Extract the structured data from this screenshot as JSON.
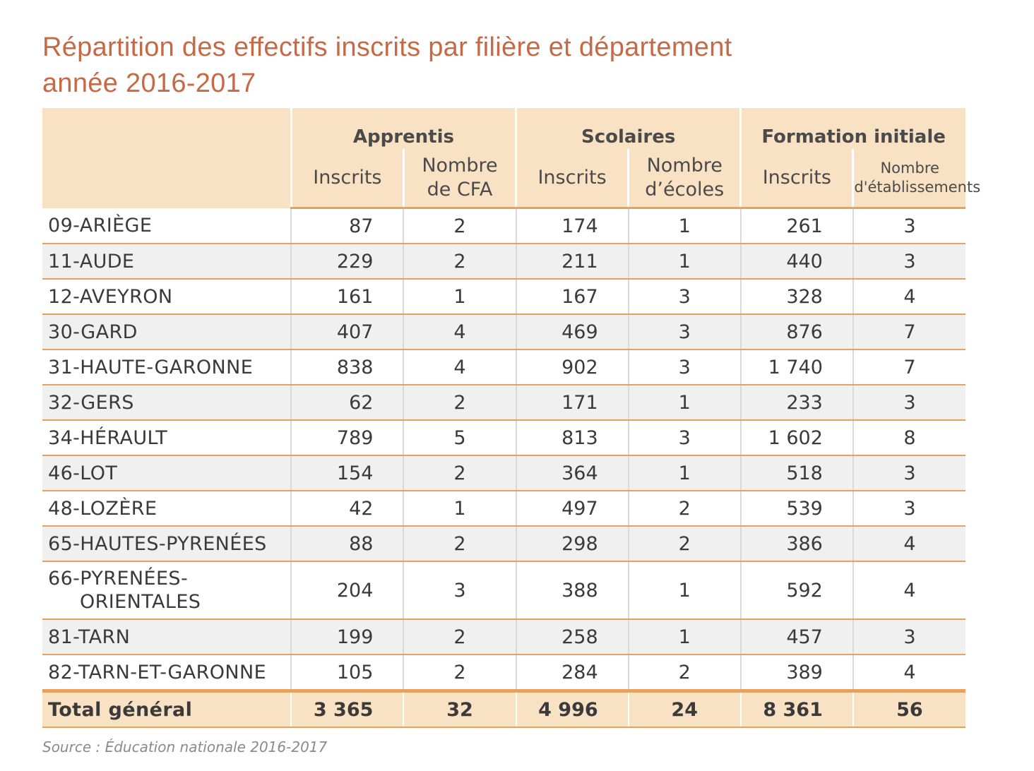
{
  "title": {
    "line1": "Répartition des effectifs inscrits par filière et département",
    "line2": "année 2016-2017"
  },
  "table": {
    "groups": [
      "Apprentis",
      "Scolaires",
      "Formation initiale"
    ],
    "subheaders": {
      "apprentis": {
        "inscrits": "Inscrits",
        "count_line1": "Nombre",
        "count_line2": "de CFA"
      },
      "scolaires": {
        "inscrits": "Inscrits",
        "count_line1": "Nombre",
        "count_line2": "d’écoles"
      },
      "formation": {
        "inscrits": "Inscrits",
        "count_line1": "Nombre",
        "count_line2": "d'établissements"
      }
    },
    "rows": [
      {
        "dept": "09-ARIÈGE",
        "dept_cont": "",
        "values": [
          "87",
          "2",
          "174",
          "1",
          "261",
          "3"
        ]
      },
      {
        "dept": "11-AUDE",
        "dept_cont": "",
        "values": [
          "229",
          "2",
          "211",
          "1",
          "440",
          "3"
        ]
      },
      {
        "dept": "12-AVEYRON",
        "dept_cont": "",
        "values": [
          "161",
          "1",
          "167",
          "3",
          "328",
          "4"
        ]
      },
      {
        "dept": "30-GARD",
        "dept_cont": "",
        "values": [
          "407",
          "4",
          "469",
          "3",
          "876",
          "7"
        ]
      },
      {
        "dept": "31-HAUTE-GARONNE",
        "dept_cont": "",
        "values": [
          "838",
          "4",
          "902",
          "3",
          "1 740",
          "7"
        ]
      },
      {
        "dept": "32-GERS",
        "dept_cont": "",
        "values": [
          "62",
          "2",
          "171",
          "1",
          "233",
          "3"
        ]
      },
      {
        "dept": "34-HÉRAULT",
        "dept_cont": "",
        "values": [
          "789",
          "5",
          "813",
          "3",
          "1 602",
          "8"
        ]
      },
      {
        "dept": "46-LOT",
        "dept_cont": "",
        "values": [
          "154",
          "2",
          "364",
          "1",
          "518",
          "3"
        ]
      },
      {
        "dept": "48-LOZÈRE",
        "dept_cont": "",
        "values": [
          "42",
          "1",
          "497",
          "2",
          "539",
          "3"
        ]
      },
      {
        "dept": "65-HAUTES-PYRENÉES",
        "dept_cont": "",
        "values": [
          "88",
          "2",
          "298",
          "2",
          "386",
          "4"
        ]
      },
      {
        "dept": "66-PYRENÉES-",
        "dept_cont": "ORIENTALES",
        "values": [
          "204",
          "3",
          "388",
          "1",
          "592",
          "4"
        ]
      },
      {
        "dept": "81-TARN",
        "dept_cont": "",
        "values": [
          "199",
          "2",
          "258",
          "1",
          "457",
          "3"
        ]
      },
      {
        "dept": "82-TARN-ET-GARONNE",
        "dept_cont": "",
        "values": [
          "105",
          "2",
          "284",
          "2",
          "389",
          "4"
        ]
      }
    ],
    "total": {
      "label": "Total général",
      "values": [
        "3 365",
        "32",
        "4 996",
        "24",
        "8 361",
        "56"
      ]
    }
  },
  "source": "Source : Éducation nationale 2016-2017"
}
